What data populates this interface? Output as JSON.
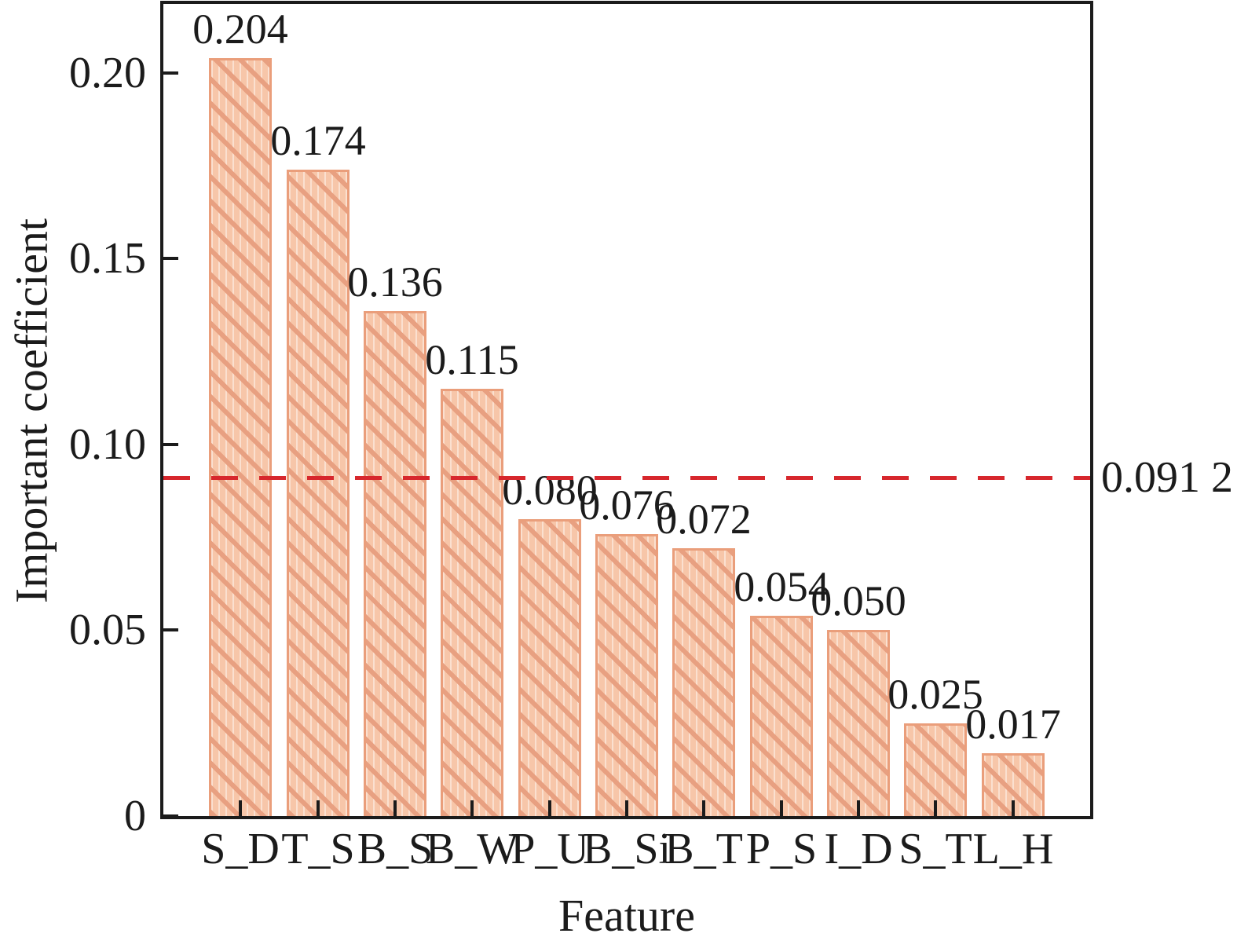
{
  "chart_data": {
    "type": "bar",
    "title": "",
    "xlabel": "Feature",
    "ylabel": "Important coefficient",
    "categories": [
      "S_D",
      "T_S",
      "B_S",
      "B_W",
      "P_U",
      "B_Si",
      "B_T",
      "P_S",
      "I_D",
      "S_T",
      "L_H"
    ],
    "values": [
      0.204,
      0.174,
      0.136,
      0.115,
      0.08,
      0.076,
      0.072,
      0.054,
      0.05,
      0.025,
      0.017
    ],
    "bar_value_labels": [
      "0.204",
      "0.174",
      "0.136",
      "0.115",
      "0.080",
      "0.076",
      "0.072",
      "0.054",
      "0.050",
      "0.025",
      "0.017"
    ],
    "yticks": [
      0,
      0.05,
      0.1,
      0.15,
      0.2
    ],
    "ytick_labels": [
      "0",
      "0.05",
      "0.10",
      "0.15",
      "0.20"
    ],
    "ylim": [
      0,
      0.2186
    ],
    "grid": false,
    "legend": "none",
    "hatch_pattern": "\\",
    "threshold_line": {
      "value": 0.0912,
      "label": "0.091 2",
      "style": "dashed"
    },
    "colors": {
      "bar_fill": "#f7c6a9",
      "bar_hatch": "#e8a081",
      "bar_edge": "#ea9e7b",
      "threshold": "#d7272d",
      "axis": "#1b1b1b",
      "text": "#1b1b1b"
    }
  }
}
